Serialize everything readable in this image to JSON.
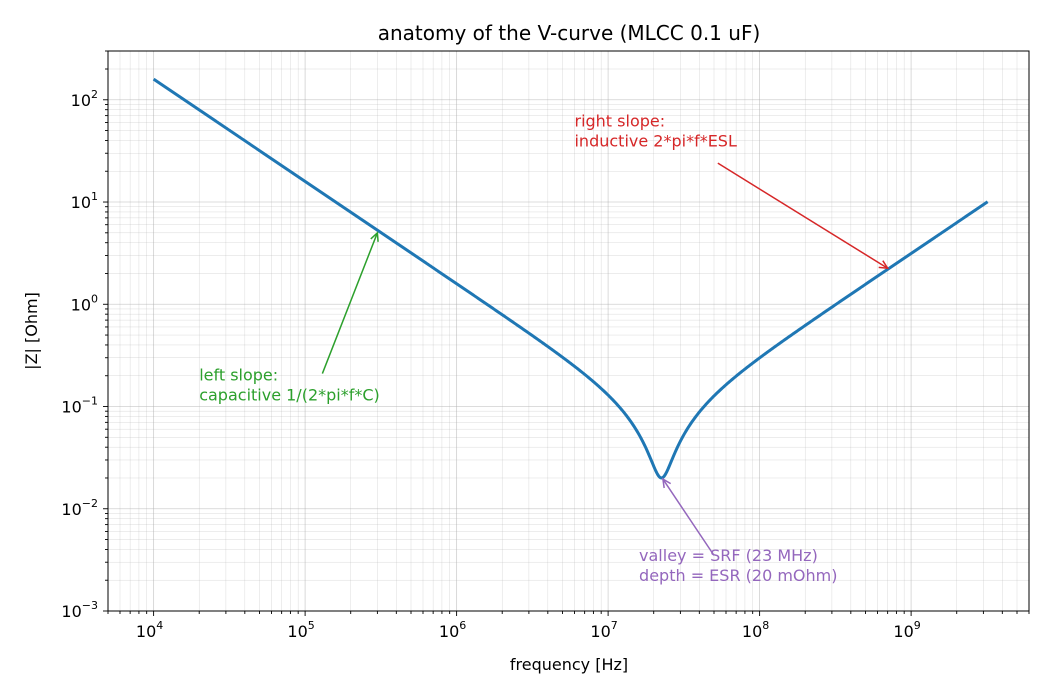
{
  "chart_data": {
    "type": "line",
    "title": "anatomy of the V-curve (MLCC 0.1 uF)",
    "xlabel": "frequency [Hz]",
    "ylabel": "|Z| [Ohm]",
    "xscale": "log",
    "yscale": "log",
    "xlim": [
      5000,
      6000000000
    ],
    "ylim": [
      0.001,
      300
    ],
    "grid": true,
    "xtick_values": [
      10000,
      100000,
      1000000,
      10000000,
      100000000,
      1000000000
    ],
    "xtick_labels": [
      {
        "base": "10",
        "exp": "4"
      },
      {
        "base": "10",
        "exp": "5"
      },
      {
        "base": "10",
        "exp": "6"
      },
      {
        "base": "10",
        "exp": "7"
      },
      {
        "base": "10",
        "exp": "8"
      },
      {
        "base": "10",
        "exp": "9"
      }
    ],
    "ytick_values": [
      0.001,
      0.01,
      0.1,
      1,
      10,
      100
    ],
    "ytick_labels": [
      {
        "base": "10",
        "exp": "−3"
      },
      {
        "base": "10",
        "exp": "−2"
      },
      {
        "base": "10",
        "exp": "−1"
      },
      {
        "base": "10",
        "exp": "0"
      },
      {
        "base": "10",
        "exp": "1"
      },
      {
        "base": "10",
        "exp": "2"
      }
    ],
    "series": [
      {
        "color": "#1f77b4",
        "model": {
          "C": 1e-07,
          "ESR": 0.02,
          "ESL": 5e-10
        },
        "x_range": [
          10000,
          3200000000
        ]
      }
    ],
    "annotations": [
      {
        "name": "left-slope",
        "lines": [
          "left slope:",
          "capacitive  1/(2*pi*f*C)"
        ],
        "color": "#2ca02c",
        "text_at": [
          20000,
          0.18
        ],
        "arrow_from": [
          130000,
          0.21
        ],
        "arrow_to": [
          300000,
          5
        ]
      },
      {
        "name": "right-slope",
        "lines": [
          "right slope:",
          "inductive  2*pi*f*ESL"
        ],
        "color": "#d62728",
        "text_at": [
          6000000,
          55
        ],
        "arrow_from": [
          53000000,
          24
        ],
        "arrow_to": [
          700000000,
          2.25
        ]
      },
      {
        "name": "valley",
        "lines": [
          "valley = SRF (23 MHz)",
          "depth = ESR (20 mOhm)"
        ],
        "color": "#9467bd",
        "text_at": [
          16000000,
          0.0031
        ],
        "arrow_from": [
          50000000,
          0.0035
        ],
        "arrow_to": [
          23000000,
          0.0195
        ]
      }
    ]
  }
}
